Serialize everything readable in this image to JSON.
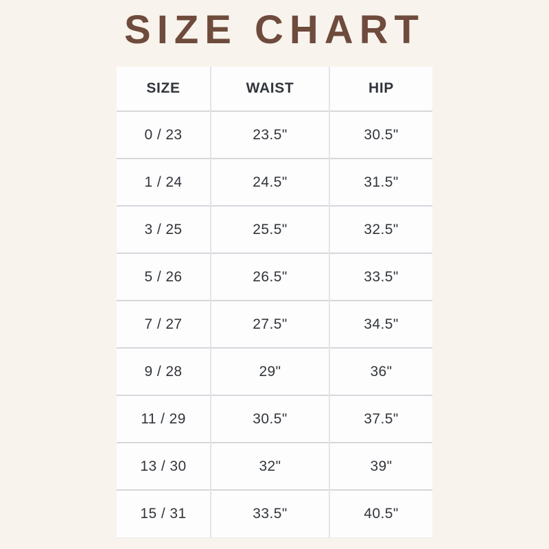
{
  "page_title": "SIZE CHART",
  "colors": {
    "background": "#f8f3ec",
    "title_text": "#6e4b3c",
    "table_background": "#fdfdfd",
    "cell_text": "#31353b",
    "row_border": "#d6d7dc",
    "column_border": "#e4e4e7"
  },
  "chart_data": {
    "type": "table",
    "title": "SIZE CHART",
    "columns": [
      "SIZE",
      "WAIST",
      "HIP"
    ],
    "rows": [
      [
        "0 / 23",
        "23.5\"",
        "30.5\""
      ],
      [
        "1 / 24",
        "24.5\"",
        "31.5\""
      ],
      [
        "3 / 25",
        "25.5\"",
        "32.5\""
      ],
      [
        "5 / 26",
        "26.5\"",
        "33.5\""
      ],
      [
        "7 / 27",
        "27.5\"",
        "34.5\""
      ],
      [
        "9 / 28",
        "29\"",
        "36\""
      ],
      [
        "11 / 29",
        "30.5\"",
        "37.5\""
      ],
      [
        "13 / 30",
        "32\"",
        "39\""
      ],
      [
        "15 / 31",
        "33.5\"",
        "40.5\""
      ]
    ]
  }
}
